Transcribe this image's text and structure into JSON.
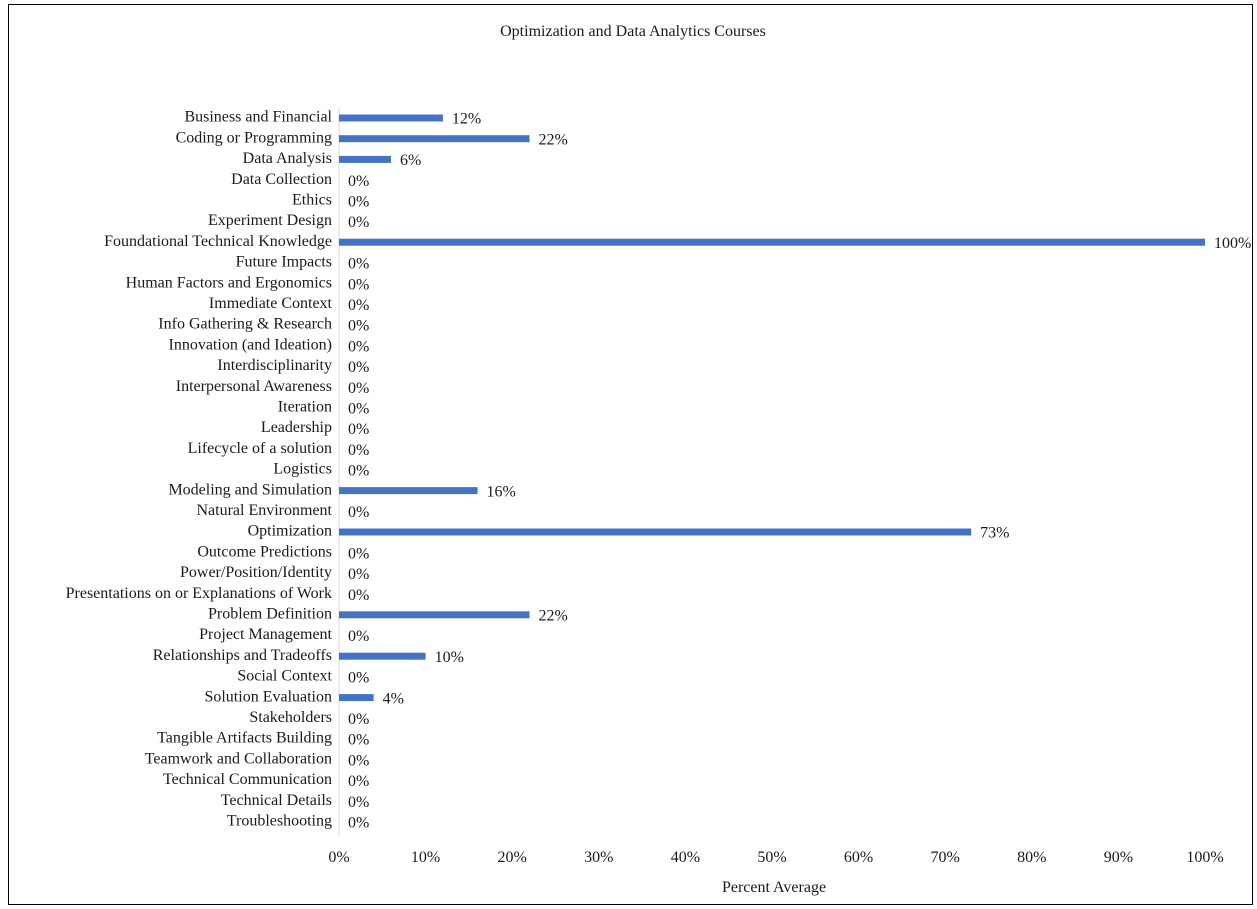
{
  "chart_data": {
    "type": "bar",
    "orientation": "horizontal",
    "title": "Optimization and Data Analytics Courses",
    "xlabel": "Percent Average",
    "ylabel": "",
    "xlim": [
      0,
      100
    ],
    "x_ticks": [
      "0%",
      "10%",
      "20%",
      "30%",
      "40%",
      "50%",
      "60%",
      "70%",
      "80%",
      "90%",
      "100%"
    ],
    "grid": false,
    "legend": "none",
    "bar_color": "#4472C4",
    "categories": [
      "Business and Financial",
      "Coding or Programming",
      "Data Analysis",
      "Data Collection",
      "Ethics",
      "Experiment Design",
      "Foundational Technical Knowledge",
      "Future Impacts",
      "Human Factors and Ergonomics",
      "Immediate Context",
      "Info Gathering & Research",
      "Innovation (and Ideation)",
      "Interdisciplinarity",
      "Interpersonal Awareness",
      "Iteration",
      "Leadership",
      "Lifecycle of a solution",
      "Logistics",
      "Modeling and Simulation",
      "Natural Environment",
      "Optimization",
      "Outcome Predictions",
      "Power/Position/Identity",
      "Presentations on or Explanations of Work",
      "Problem Definition",
      "Project Management",
      "Relationships and Tradeoffs",
      "Social Context",
      "Solution Evaluation",
      "Stakeholders",
      "Tangible Artifacts Building",
      "Teamwork and Collaboration",
      "Technical Communication",
      "Technical Details",
      "Troubleshooting"
    ],
    "values": [
      12,
      22,
      6,
      0,
      0,
      0,
      100,
      0,
      0,
      0,
      0,
      0,
      0,
      0,
      0,
      0,
      0,
      0,
      16,
      0,
      73,
      0,
      0,
      0,
      22,
      0,
      10,
      0,
      4,
      0,
      0,
      0,
      0,
      0,
      0
    ],
    "data_labels": [
      "12%",
      "22%",
      "6%",
      "0%",
      "0%",
      "0%",
      "100%",
      "0%",
      "0%",
      "0%",
      "0%",
      "0%",
      "0%",
      "0%",
      "0%",
      "0%",
      "0%",
      "0%",
      "16%",
      "0%",
      "73%",
      "0%",
      "0%",
      "0%",
      "22%",
      "0%",
      "10%",
      "0%",
      "4%",
      "0%",
      "0%",
      "0%",
      "0%",
      "0%",
      "0%"
    ]
  }
}
